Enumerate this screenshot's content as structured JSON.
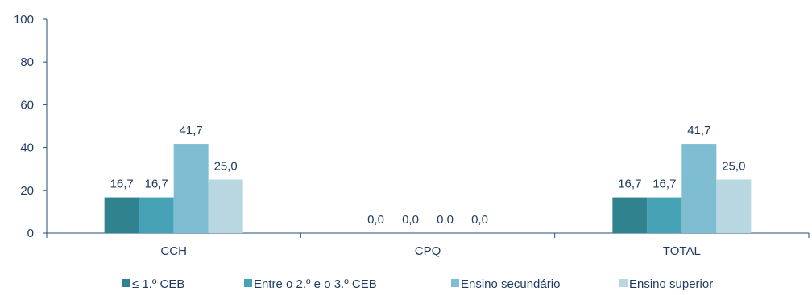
{
  "chart_data": {
    "type": "bar",
    "categories": [
      "CCH",
      "CPQ",
      "TOTAL"
    ],
    "series": [
      {
        "name": "≤ 1.º CEB",
        "values": [
          16.7,
          0.0,
          16.7
        ],
        "labels": [
          "16,7",
          "0,0",
          "16,7"
        ],
        "color": "#31828f"
      },
      {
        "name": "Entre o 2.º e o 3.º CEB",
        "values": [
          16.7,
          0.0,
          16.7
        ],
        "labels": [
          "16,7",
          "0,0",
          "16,7"
        ],
        "color": "#46a3b6"
      },
      {
        "name": "Ensino secundário",
        "values": [
          41.7,
          0.0,
          41.7
        ],
        "labels": [
          "41,7",
          "0,0",
          "41,7"
        ],
        "color": "#7fbdd2"
      },
      {
        "name": "Ensino superior",
        "values": [
          25.0,
          0.0,
          25.0
        ],
        "labels": [
          "25,0",
          "0,0",
          "25,0"
        ],
        "color": "#b8d7e1"
      }
    ],
    "ylim": [
      0,
      100
    ],
    "yticks": [
      0,
      20,
      40,
      60,
      80,
      100
    ],
    "ytick_labels": [
      "0",
      "20",
      "40",
      "60",
      "80",
      "100"
    ],
    "title": "",
    "xlabel": "",
    "ylabel": "",
    "grid": false,
    "legend": "bottom",
    "axis_color": "#1f4e79",
    "text_color": "#1f3a5f"
  }
}
